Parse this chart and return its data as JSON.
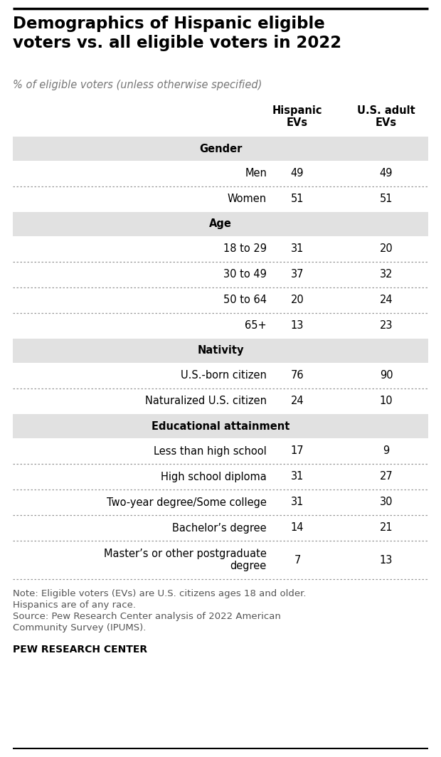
{
  "title": "Demographics of Hispanic eligible\nvoters vs. all eligible voters in 2022",
  "subtitle": "% of eligible voters (unless otherwise specified)",
  "col_headers": [
    "Hispanic\nEVs",
    "U.S. adult\nEVs"
  ],
  "sections": [
    {
      "header": "Gender",
      "rows": [
        {
          "label": "Men",
          "val1": "49",
          "val2": "49"
        },
        {
          "label": "Women",
          "val1": "51",
          "val2": "51"
        }
      ]
    },
    {
      "header": "Age",
      "rows": [
        {
          "label": "18 to 29",
          "val1": "31",
          "val2": "20"
        },
        {
          "label": "30 to 49",
          "val1": "37",
          "val2": "32"
        },
        {
          "label": "50 to 64",
          "val1": "20",
          "val2": "24"
        },
        {
          "label": "65+",
          "val1": "13",
          "val2": "23"
        }
      ]
    },
    {
      "header": "Nativity",
      "rows": [
        {
          "label": "U.S.-born citizen",
          "val1": "76",
          "val2": "90"
        },
        {
          "label": "Naturalized U.S. citizen",
          "val1": "24",
          "val2": "10"
        }
      ]
    },
    {
      "header": "Educational attainment",
      "rows": [
        {
          "label": "Less than high school",
          "val1": "17",
          "val2": "9"
        },
        {
          "label": "High school diploma",
          "val1": "31",
          "val2": "27"
        },
        {
          "label": "Two-year degree/Some college",
          "val1": "31",
          "val2": "30"
        },
        {
          "label": "Bachelor’s degree",
          "val1": "14",
          "val2": "21"
        },
        {
          "label": "Master’s or other postgraduate\ndegree",
          "val1": "7",
          "val2": "13"
        }
      ]
    }
  ],
  "note_line1": "Note: Eligible voters (EVs) are U.S. citizens ages 18 and older.",
  "note_line2": "Hispanics are of any race.",
  "note_line3": "Source: Pew Research Center analysis of 2022 American",
  "note_line4": "Community Survey (IPUMS).",
  "source_bold": "PEW RESEARCH CENTER",
  "header_bg": "#e1e1e1",
  "bg_color": "#ffffff",
  "text_color": "#000000",
  "note_color": "#555555",
  "top_line_color": "#000000",
  "dotted_line_color": "#999999",
  "title_fontsize": 16.5,
  "subtitle_fontsize": 10.5,
  "col_header_fontsize": 10.5,
  "section_header_fontsize": 10.5,
  "row_label_fontsize": 10.5,
  "value_fontsize": 10.5,
  "note_fontsize": 9.5
}
